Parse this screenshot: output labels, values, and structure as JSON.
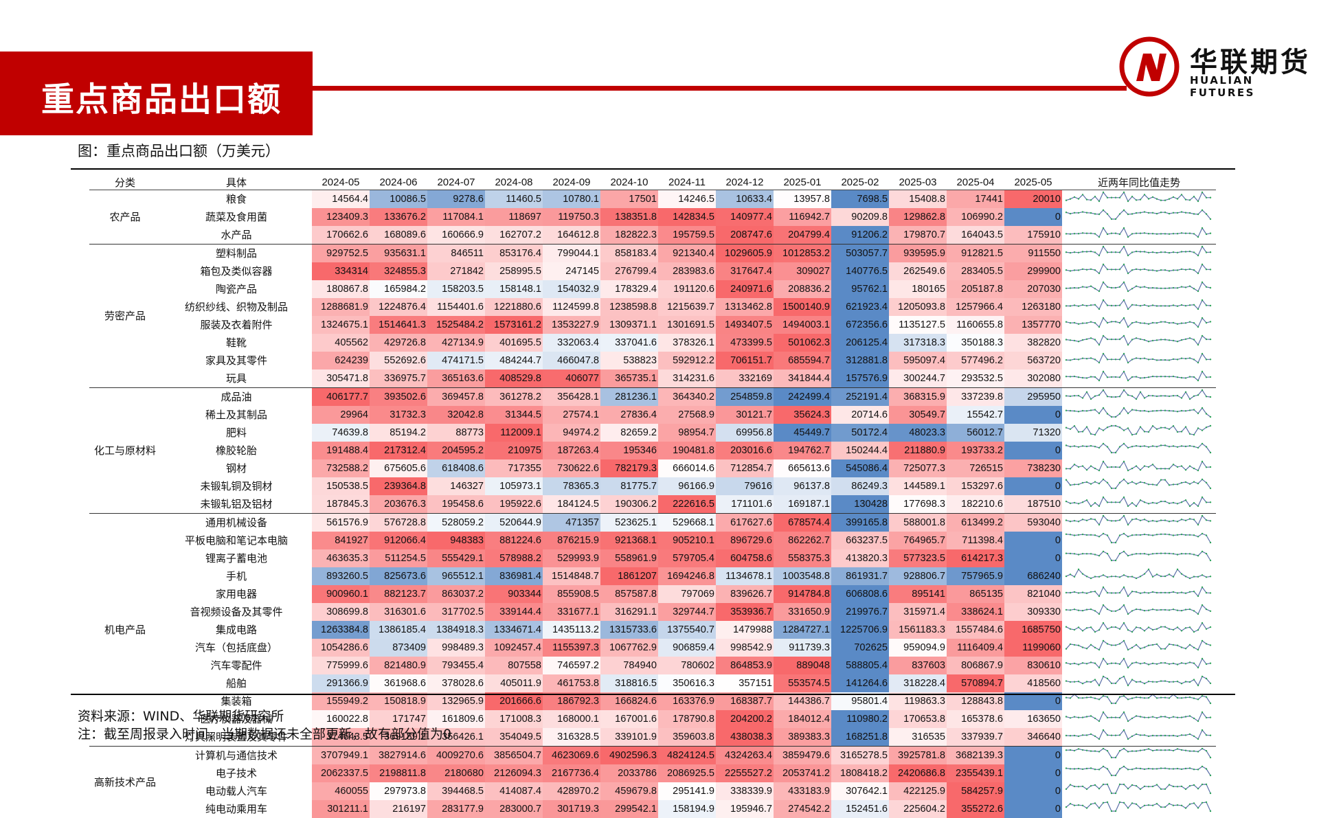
{
  "header": {
    "title": "重点商品出口额"
  },
  "logo": {
    "name_cn": "华联期货",
    "name_en": "HUALIAN FUTURES",
    "brand_color": "#c00000"
  },
  "figure": {
    "caption": "图：重点商品出口额（万美元）"
  },
  "table": {
    "columns": [
      "分类",
      "具体",
      "2024-05",
      "2024-06",
      "2024-07",
      "2024-08",
      "2024-09",
      "2024-10",
      "2024-11",
      "2024-12",
      "2025-01",
      "2025-02",
      "2025-03",
      "2025-04",
      "2025-05",
      "近两年同比值走势"
    ],
    "groups": [
      {
        "category": "农产品",
        "rows": [
          {
            "name": "粮食",
            "values": [
              "14564.4",
              "10086.5",
              "9278.6",
              "11460.5",
              "10780.1",
              "17501",
              "14246.5",
              "10633.4",
              "13957.8",
              "7698.5",
              "15408.8",
              "17441",
              "20010"
            ]
          },
          {
            "name": "蔬菜及食用菌",
            "values": [
              "123409.3",
              "133676.2",
              "117084.1",
              "118697",
              "119750.3",
              "138351.8",
              "142834.5",
              "140977.4",
              "116942.7",
              "90209.8",
              "129862.8",
              "106990.2",
              "0"
            ]
          },
          {
            "name": "水产品",
            "values": [
              "170662.6",
              "168089.6",
              "160666.9",
              "162707.2",
              "164612.8",
              "182822.3",
              "195759.5",
              "208747.6",
              "204799.4",
              "91206.2",
              "179870.7",
              "164043.5",
              "175910"
            ]
          }
        ]
      },
      {
        "category": "劳密产品",
        "rows": [
          {
            "name": "塑料制品",
            "values": [
              "929752.5",
              "935631.1",
              "846511",
              "853176.4",
              "799044.1",
              "858183.4",
              "921340.4",
              "1029605.9",
              "1012853.2",
              "503057.7",
              "939595.9",
              "912821.5",
              "911550"
            ]
          },
          {
            "name": "箱包及类似容器",
            "values": [
              "334314",
              "324855.3",
              "271842",
              "258995.5",
              "247145",
              "276799.4",
              "283983.6",
              "317647.4",
              "309027",
              "140776.5",
              "262549.6",
              "283405.5",
              "299900"
            ]
          },
          {
            "name": "陶瓷产品",
            "values": [
              "180867.8",
              "165984.2",
              "158203.5",
              "158148.1",
              "154032.9",
              "178329.4",
              "191120.6",
              "240971.6",
              "208836.2",
              "95762.1",
              "180165",
              "205187.8",
              "207030"
            ]
          },
          {
            "name": "纺织纱线、织物及制品",
            "values": [
              "1288681.9",
              "1224876.4",
              "1154401.6",
              "1221880.6",
              "1124599.8",
              "1238598.8",
              "1215639.7",
              "1313462.8",
              "1500140.9",
              "621923.4",
              "1205093.8",
              "1257966.4",
              "1263180"
            ]
          },
          {
            "name": "服装及衣着附件",
            "values": [
              "1324675.1",
              "1514641.3",
              "1525484.2",
              "1573161.2",
              "1353227.9",
              "1309371.1",
              "1301691.5",
              "1493407.5",
              "1494003.1",
              "672356.6",
              "1135127.5",
              "1160655.8",
              "1357770"
            ]
          },
          {
            "name": "鞋靴",
            "values": [
              "405562",
              "429726.8",
              "427134.9",
              "401695.5",
              "332063.4",
              "337041.6",
              "378326.1",
              "473399.5",
              "501062.3",
              "206125.4",
              "317318.3",
              "350188.3",
              "382820"
            ]
          },
          {
            "name": "家具及其零件",
            "values": [
              "624239",
              "552692.6",
              "474171.5",
              "484244.7",
              "466047.8",
              "538823",
              "592912.2",
              "706151.7",
              "685594.7",
              "312881.8",
              "595097.4",
              "577496.2",
              "563720"
            ]
          },
          {
            "name": "玩具",
            "values": [
              "305471.8",
              "336975.7",
              "365163.6",
              "408529.8",
              "406077",
              "365735.1",
              "314231.6",
              "332169",
              "341844.4",
              "157576.9",
              "300244.7",
              "293532.5",
              "302080"
            ]
          }
        ]
      },
      {
        "category": "化工与原材料",
        "rows": [
          {
            "name": "成品油",
            "values": [
              "406177.7",
              "393502.6",
              "369457.8",
              "361278.2",
              "356428.1",
              "281236.1",
              "364340.2",
              "254859.8",
              "242499.4",
              "252191.4",
              "368315.9",
              "337239.8",
              "295950"
            ]
          },
          {
            "name": "稀土及其制品",
            "values": [
              "29964",
              "31732.3",
              "32042.8",
              "31344.5",
              "27574.1",
              "27836.4",
              "27568.9",
              "30121.7",
              "35624.3",
              "20714.6",
              "30549.7",
              "15542.7",
              "0"
            ]
          },
          {
            "name": "肥料",
            "values": [
              "74639.8",
              "85194.2",
              "88773",
              "112009.1",
              "94974.2",
              "82659.2",
              "98954.7",
              "69956.8",
              "45449.7",
              "50172.4",
              "48023.3",
              "56012.7",
              "71320"
            ]
          },
          {
            "name": "橡胶轮胎",
            "values": [
              "191488.4",
              "217312.4",
              "204595.2",
              "210975",
              "187263.4",
              "195346",
              "190481.8",
              "203016.6",
              "194762.7",
              "150244.4",
              "211880.9",
              "193733.2",
              "0"
            ]
          },
          {
            "name": "钢材",
            "values": [
              "732588.2",
              "675605.6",
              "618408.6",
              "717355",
              "730622.6",
              "782179.3",
              "666014.6",
              "712854.7",
              "665613.6",
              "545086.4",
              "725077.3",
              "726515",
              "738230"
            ]
          },
          {
            "name": "未锻轧铜及铜材",
            "values": [
              "150538.5",
              "239364.8",
              "146327",
              "105973.1",
              "78365.3",
              "81775.7",
              "96166.9",
              "79616",
              "96137.8",
              "86249.3",
              "144589.1",
              "153297.6",
              "0"
            ]
          },
          {
            "name": "未锻轧铝及铝材",
            "values": [
              "187845.3",
              "203676.3",
              "195458.6",
              "195922.6",
              "184124.5",
              "190306.2",
              "222616.5",
              "171101.6",
              "169187.1",
              "130428",
              "177698.3",
              "182210.6",
              "187510"
            ]
          }
        ]
      },
      {
        "category": "机电产品",
        "rows": [
          {
            "name": "通用机械设备",
            "values": [
              "561576.9",
              "576728.8",
              "528059.2",
              "520644.9",
              "471357",
              "523625.1",
              "529668.1",
              "617627.6",
              "678574.4",
              "399165.8",
              "588001.8",
              "613499.2",
              "593040"
            ]
          },
          {
            "name": "平板电脑和笔记本电脑",
            "values": [
              "841927",
              "912066.4",
              "948383",
              "881224.6",
              "876215.9",
              "921368.1",
              "905210.1",
              "896729.6",
              "862262.7",
              "663237.5",
              "764965.7",
              "711398.4",
              "0"
            ]
          },
          {
            "name": "锂离子蓄电池",
            "values": [
              "463635.3",
              "511254.5",
              "555429.1",
              "578988.2",
              "529993.9",
              "558961.9",
              "579705.4",
              "604758.6",
              "558375.3",
              "413820.3",
              "577323.5",
              "614217.3",
              "0"
            ]
          },
          {
            "name": "手机",
            "values": [
              "893260.5",
              "825673.6",
              "965512.1",
              "836981.4",
              "1514848.7",
              "1861207",
              "1694246.8",
              "1134678.1",
              "1003548.8",
              "861931.7",
              "928806.7",
              "757965.9",
              "686240"
            ]
          },
          {
            "name": "家用电器",
            "values": [
              "900960.1",
              "882123.7",
              "863037.2",
              "903344",
              "855908.5",
              "857587.8",
              "797069",
              "839626.7",
              "914784.8",
              "606808.6",
              "895141",
              "865135",
              "821040"
            ]
          },
          {
            "name": "音视频设备及其零件",
            "values": [
              "308699.8",
              "316301.6",
              "317702.5",
              "339144.4",
              "331677.1",
              "316291.1",
              "329744.7",
              "353936.7",
              "331650.9",
              "219976.7",
              "315971.4",
              "338624.1",
              "309330"
            ]
          },
          {
            "name": "集成电路",
            "values": [
              "1263384.8",
              "1386185.4",
              "1384918.3",
              "1334671.4",
              "1435113.2",
              "1315733.6",
              "1375540.7",
              "1479988",
              "1284727.1",
              "1225706.9",
              "1561183.3",
              "1557484.6",
              "1685750"
            ]
          },
          {
            "name": "汽车（包括底盘）",
            "values": [
              "1054286.6",
              "873409",
              "998489.3",
              "1092457.4",
              "1155397.3",
              "1067762.9",
              "906859.4",
              "998542.9",
              "911739.3",
              "702625",
              "959094.9",
              "1116409.4",
              "1199060"
            ]
          },
          {
            "name": "汽车零配件",
            "values": [
              "775999.6",
              "821480.9",
              "793455.4",
              "807558",
              "746597.2",
              "784940",
              "780602",
              "864853.9",
              "889048",
              "588805.4",
              "837603",
              "806867.9",
              "830610"
            ]
          },
          {
            "name": "船舶",
            "values": [
              "291366.9",
              "361968.6",
              "378028.6",
              "405011.9",
              "461753.8",
              "318816.5",
              "350616.3",
              "357151",
              "553574.5",
              "141264.6",
              "318228.4",
              "570894.7",
              "418560"
            ]
          },
          {
            "name": "集装箱",
            "values": [
              "155949.2",
              "150818.9",
              "132965.9",
              "201666.6",
              "186792.3",
              "166824.6",
              "163376.9",
              "168387.7",
              "144386.7",
              "95801.4",
              "119863.3",
              "128843.8",
              "0"
            ]
          },
          {
            "name": "医疗仪器及器械",
            "values": [
              "160022.8",
              "171747",
              "161809.6",
              "171008.3",
              "168000.1",
              "167001.6",
              "178790.8",
              "204200.2",
              "184012.4",
              "110980.2",
              "170653.8",
              "165378.6",
              "163650"
            ]
          },
          {
            "name": "灯具照明装置及其零件",
            "values": [
              "374643.5",
              "369189.2",
              "356426.1",
              "354049.5",
              "316328.5",
              "339101.9",
              "359603.8",
              "438038.3",
              "389383.3",
              "168251.8",
              "316535",
              "337939.7",
              "346640"
            ]
          }
        ]
      },
      {
        "category": "高新技术产品",
        "rows": [
          {
            "name": "计算机与通信技术",
            "values": [
              "3707949.1",
              "3827914.6",
              "4009270.6",
              "3856504.7",
              "4623069.6",
              "4902596.3",
              "4824124.5",
              "4324263.4",
              "3859479.6",
              "3165278.5",
              "3925781.8",
              "3682139.3",
              "0"
            ]
          },
          {
            "name": "电子技术",
            "values": [
              "2062337.5",
              "2198811.8",
              "2180680",
              "2126094.3",
              "2167736.4",
              "2033786",
              "2086925.5",
              "2255527.2",
              "2053741.2",
              "1808418.2",
              "2420686.8",
              "2355439.1",
              "0"
            ]
          },
          {
            "name": "电动载人汽车",
            "values": [
              "460055",
              "297973.8",
              "394468.5",
              "414087.4",
              "428970.2",
              "459679.8",
              "295141.9",
              "338339.9",
              "433183.9",
              "307642.1",
              "422125.9",
              "584257.9",
              "0"
            ]
          },
          {
            "name": "纯电动乘用车",
            "values": [
              "301211.1",
              "216197",
              "283177.9",
              "283000.7",
              "301719.3",
              "299542.1",
              "158194.9",
              "195946.7",
              "274542.2",
              "152451.6",
              "225604.2",
              "355272.6",
              "0"
            ]
          }
        ]
      }
    ]
  },
  "colors": {
    "high": "#f8696b",
    "mid": "#ffffff",
    "low": "#5a8ac6",
    "spark_line": "#5b6fa8",
    "spark_marker": "#2ea35a"
  },
  "footer": {
    "source": "资料来源：WIND、华联期货研究所",
    "note": "注：截至周报录入时间，当期数据还未全部更新，故有部分值为0"
  }
}
